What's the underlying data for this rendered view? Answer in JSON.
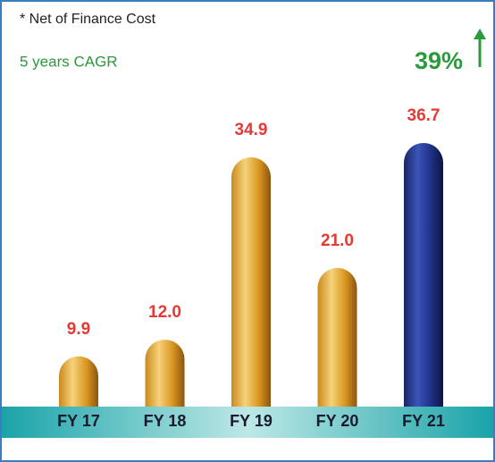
{
  "chart_data": {
    "type": "bar",
    "note": "* Net of Finance Cost",
    "cagr_label": "5 years CAGR",
    "cagr_value": 39,
    "cagr_value_label": "39%",
    "categories": [
      "FY 17",
      "FY 18",
      "FY 19",
      "FY 20",
      "FY 21"
    ],
    "values": [
      9.9,
      12.0,
      34.9,
      21.0,
      36.7
    ],
    "value_labels": [
      "9.9",
      "12.0",
      "34.9",
      "21.0",
      "36.7"
    ],
    "colors": [
      "#e8a82a",
      "#e8a82a",
      "#e8a82a",
      "#e8a82a",
      "#1f2f7a"
    ]
  }
}
